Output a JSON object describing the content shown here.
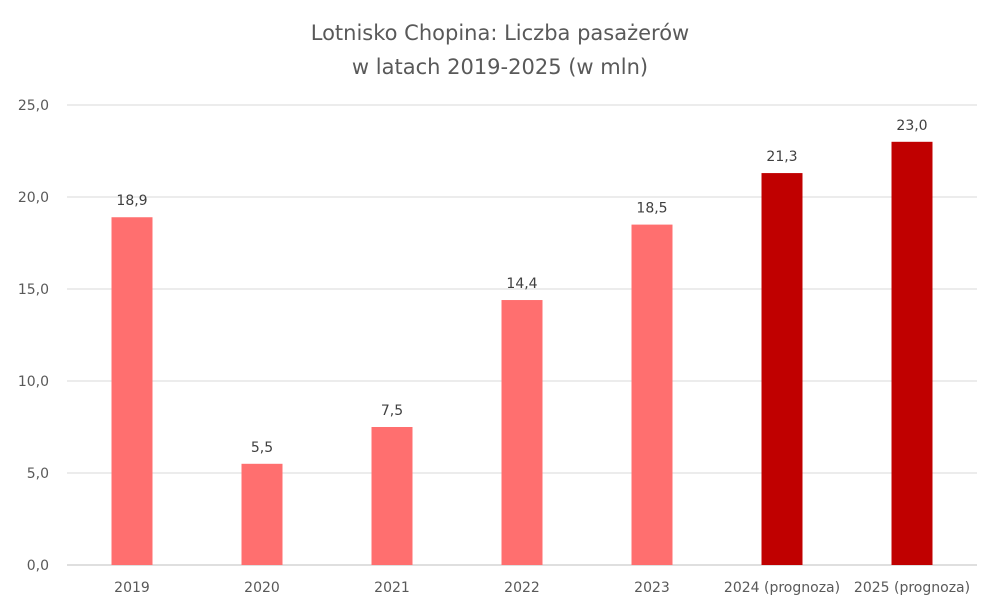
{
  "chart_data": {
    "type": "bar",
    "title_lines": [
      "Lotnisko Chopina: Liczba pasażerów",
      "w latach 2019-2025 (w mln)"
    ],
    "categories": [
      "2019",
      "2020",
      "2021",
      "2022",
      "2023",
      "2024 (prognoza)",
      "2025 (prognoza)"
    ],
    "values": [
      18.9,
      5.5,
      7.5,
      14.4,
      18.5,
      21.3,
      23.0
    ],
    "value_labels": [
      "18,9",
      "5,5",
      "7,5",
      "14,4",
      "18,5",
      "21,3",
      "23,0"
    ],
    "bar_colors": [
      "#ff6f6f",
      "#ff6f6f",
      "#ff6f6f",
      "#ff6f6f",
      "#ff6f6f",
      "#c00000",
      "#c00000"
    ],
    "ylim": [
      0,
      25
    ],
    "yticks": [
      0,
      5,
      10,
      15,
      20,
      25
    ],
    "ytick_labels": [
      "0,0",
      "5,0",
      "10,0",
      "15,0",
      "20,0",
      "25,0"
    ],
    "grid": true,
    "legend": "none",
    "gridline_color": "#d9d9d9",
    "axis_color": "#bfbfbf"
  }
}
